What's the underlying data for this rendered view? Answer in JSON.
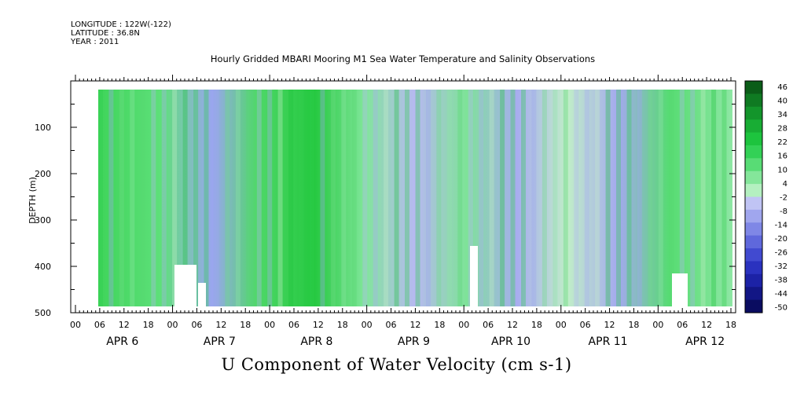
{
  "header": {
    "longitude": "LONGITUDE : 122W(-122)",
    "latitude": "LATITUDE : 36.8N",
    "year": "YEAR : 2011"
  },
  "chart_data": {
    "type": "heatmap",
    "title": "Hourly Gridded MBARI Mooring M1 Sea Water Temperature and Salinity Observations",
    "ylabel": "DEPTH (m)",
    "xlabel": "U Component of Water Velocity (cm s-1)",
    "ylim": [
      500,
      0
    ],
    "y_ticks": [
      100,
      200,
      300,
      400,
      500
    ],
    "x_hour_ticks": [
      "00",
      "06",
      "12",
      "18",
      "00",
      "06",
      "12",
      "18",
      "00",
      "06",
      "12",
      "18",
      "00",
      "06",
      "12",
      "18",
      "00",
      "06",
      "12",
      "18",
      "00",
      "06",
      "12",
      "18",
      "00",
      "06",
      "12",
      "18"
    ],
    "x_day_labels": [
      "APR  6",
      "APR  7",
      "APR  8",
      "APR  9",
      "APR 10",
      "APR 11",
      "APR 12"
    ],
    "colorbar": {
      "labels": [
        "46",
        "40",
        "34",
        "28",
        "22",
        "16",
        "10",
        "4",
        "-2",
        "-8",
        "-14",
        "-20",
        "-26",
        "-32",
        "-38",
        "-44",
        "-50"
      ],
      "units": "cm s-1"
    }
  }
}
